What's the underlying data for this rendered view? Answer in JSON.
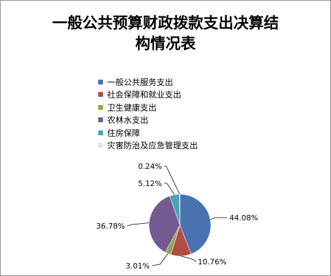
{
  "chart_data": {
    "type": "pie",
    "title_line1": "一般公共预算财政拨款支出决算结",
    "title_line2": "构情况表",
    "slices": [
      {
        "name": "一般公共服务支出",
        "value": 44.08,
        "label": "44.08%",
        "color": "#4a72b0"
      },
      {
        "name": "社会保障和就业支出",
        "value": 10.76,
        "label": "10.76%",
        "color": "#b24c46"
      },
      {
        "name": "卫生健康支出",
        "value": 3.01,
        "label": "3.01%",
        "color": "#8aa94d"
      },
      {
        "name": "农林水支出",
        "value": 36.78,
        "label": "36.78%",
        "color": "#735a91"
      },
      {
        "name": "住房保障",
        "value": 5.12,
        "label": "5.12%",
        "color": "#4aa3ba"
      },
      {
        "name": "灾害防治及应急管理支出",
        "value": 0.24,
        "label": "0.24%",
        "color": "#dbe4f1"
      }
    ],
    "legend_position": "top"
  }
}
